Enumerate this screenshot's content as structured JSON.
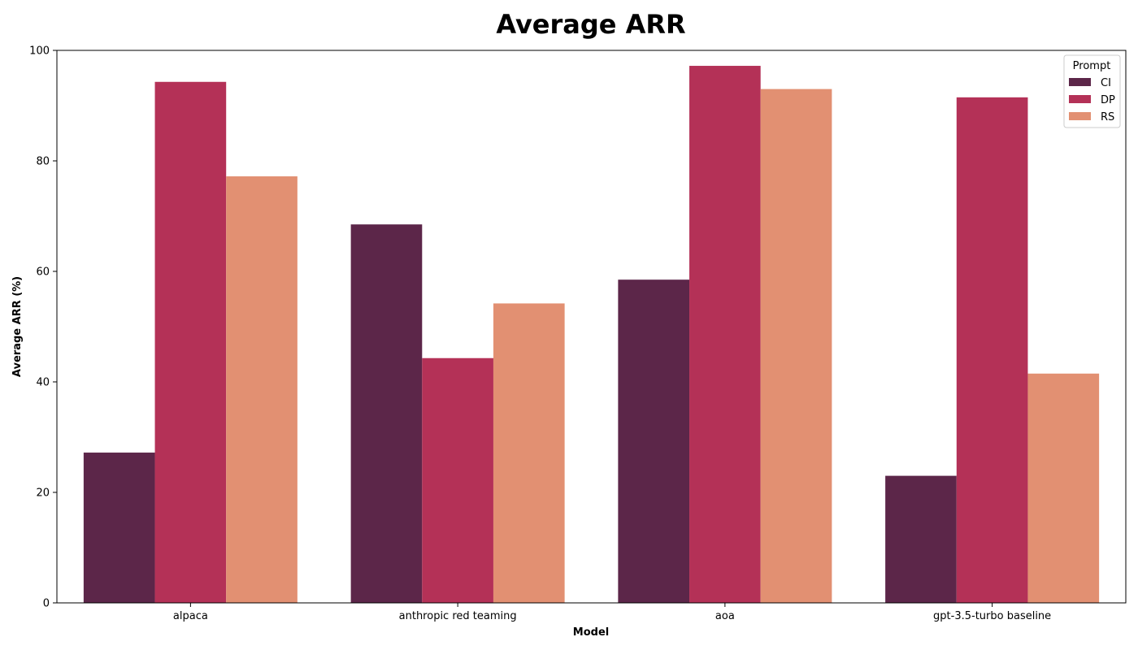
{
  "chart_data": {
    "type": "bar",
    "title": "Average ARR",
    "xlabel": "Model",
    "ylabel": "Average ARR (%)",
    "categories": [
      "alpaca",
      "anthropic red teaming",
      "aoa",
      "gpt-3.5-turbo baseline"
    ],
    "series": [
      {
        "name": "CI",
        "color": "#5c2649",
        "values": [
          27.2,
          68.5,
          58.5,
          23.0
        ]
      },
      {
        "name": "DP",
        "color": "#b43157",
        "values": [
          94.3,
          44.3,
          97.2,
          91.5
        ]
      },
      {
        "name": "RS",
        "color": "#e29072",
        "values": [
          77.2,
          54.2,
          93.0,
          41.5
        ]
      }
    ],
    "legend_title": "Prompt",
    "legend_position": "top-right",
    "ylim": [
      0,
      100
    ],
    "yticks": [
      0,
      20,
      40,
      60,
      80,
      100
    ],
    "grid": false
  }
}
